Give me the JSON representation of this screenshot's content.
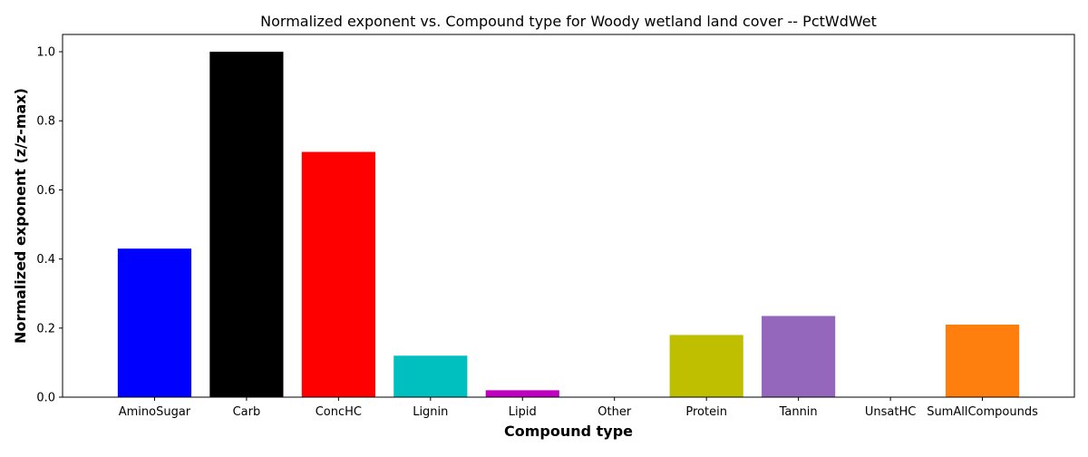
{
  "chart_data": {
    "type": "bar",
    "title": "Normalized exponent vs. Compound type for Woody wetland land cover -- PctWdWet",
    "xlabel": "Compound type",
    "ylabel": "Normalized exponent (z/z-max)",
    "categories": [
      "AminoSugar",
      "Carb",
      "ConcHC",
      "Lignin",
      "Lipid",
      "Other",
      "Protein",
      "Tannin",
      "UnsatHC",
      "SumAllCompounds"
    ],
    "values": [
      0.43,
      1.0,
      0.71,
      0.12,
      0.02,
      0.0,
      0.18,
      0.235,
      0.0,
      0.21
    ],
    "colors": [
      "#0000ff",
      "#000000",
      "#ff0000",
      "#00bfbf",
      "#bf00bf",
      "#ffffff",
      "#bfbf00",
      "#9467bd",
      "#ffffff",
      "#ff7f0e"
    ],
    "ylim": [
      0,
      1.05
    ],
    "yticks": [
      0.0,
      0.2,
      0.4,
      0.6,
      0.8,
      1.0
    ],
    "ytick_labels": [
      "0.0",
      "0.2",
      "0.4",
      "0.6",
      "0.8",
      "1.0"
    ],
    "grid": false,
    "legend": "none"
  }
}
